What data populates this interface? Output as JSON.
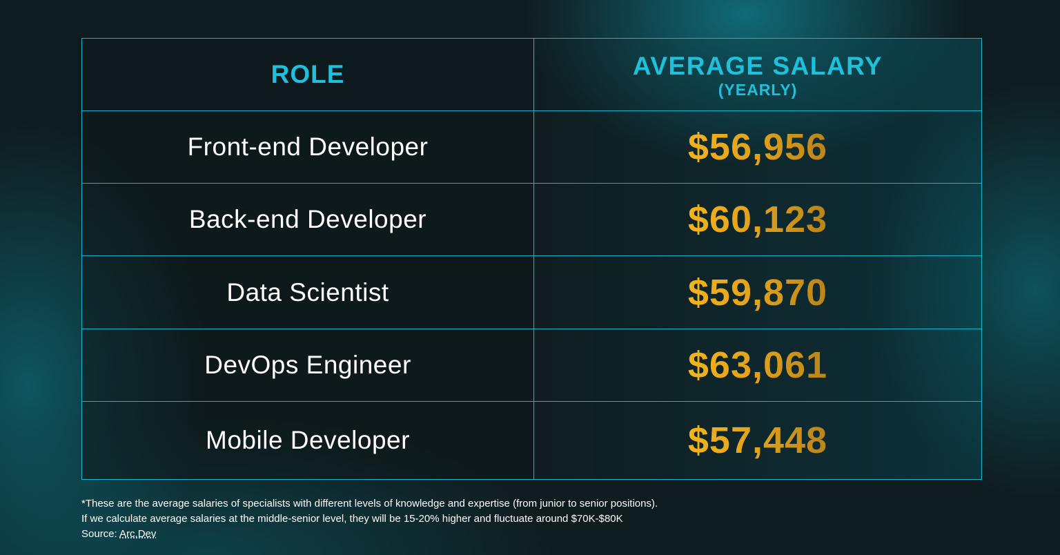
{
  "table": {
    "headers": {
      "role": "ROLE",
      "salary": "AVERAGE SALARY",
      "salary_sub": "(YEARLY)"
    },
    "rows": [
      {
        "role": "Front-end Developer",
        "salary": "$56,956"
      },
      {
        "role": "Back-end Developer",
        "salary": "$60,123"
      },
      {
        "role": "Data Scientist",
        "salary": "$59,870"
      },
      {
        "role": "DevOps Engineer",
        "salary": "$63,061"
      },
      {
        "role": "Mobile Developer",
        "salary": "$57,448"
      }
    ]
  },
  "footer": {
    "note_line1": "*These are the average salaries of specialists with different levels of knowledge and expertise (from junior to senior positions).",
    "note_line2": "If we calculate average salaries at the middle-senior level, they will be 15-20% higher and fluctuate around $70K-$80K",
    "source_label": "Source: ",
    "source_link": "Arc.Dev"
  },
  "colors": {
    "header_text": "#1ec0dc",
    "border": "#1ab3cc",
    "salary_gold": "#f4b21f",
    "role_text": "#ffffff",
    "background": "#0f1c1f"
  },
  "chart_data": {
    "type": "table",
    "title": "",
    "columns": [
      "ROLE",
      "AVERAGE SALARY (YEARLY)"
    ],
    "categories": [
      "Front-end Developer",
      "Back-end Developer",
      "Data Scientist",
      "DevOps Engineer",
      "Mobile Developer"
    ],
    "values": [
      56956,
      60123,
      59870,
      63061,
      57448
    ],
    "unit": "USD per year",
    "notes": [
      "*These are the average salaries of specialists with different levels of knowledge and expertise (from junior to senior positions).",
      "If we calculate average salaries at the middle-senior level, they will be 15-20% higher and fluctuate around $70K-$80K",
      "Source: Arc.Dev"
    ]
  }
}
